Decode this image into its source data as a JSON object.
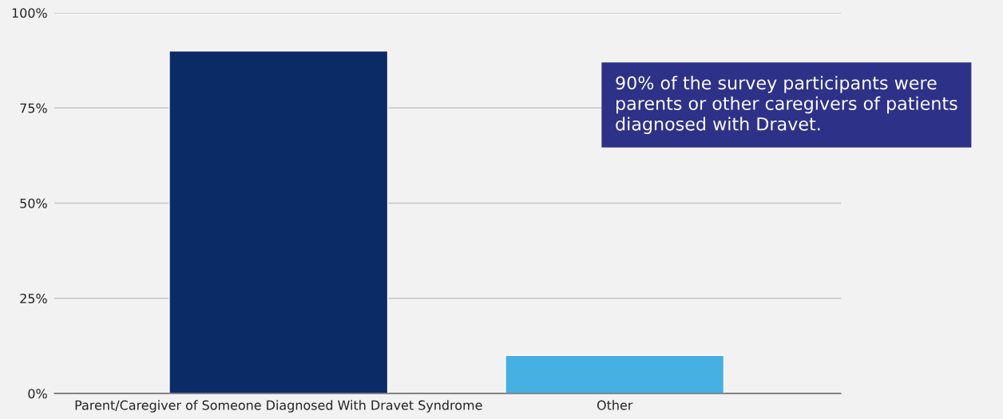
{
  "chart_data": {
    "type": "bar",
    "categories": [
      "Parent/Caregiver of Someone Diagnosed With Dravet Syndrome",
      "Other"
    ],
    "values": [
      90,
      10
    ],
    "colors": [
      "#0b2b66",
      "#47b0e2"
    ],
    "ylim": [
      0,
      100
    ],
    "yticks": [
      {
        "value": 0,
        "label": "0%"
      },
      {
        "value": 25,
        "label": "25%"
      },
      {
        "value": 50,
        "label": "50%"
      },
      {
        "value": 75,
        "label": "75%"
      },
      {
        "value": 100,
        "label": "100%"
      }
    ],
    "grid": "y",
    "legend": false,
    "annotations": [
      "90% of the survey participants were\nparents or other caregivers of patients\ndiagnosed with Dravet."
    ]
  }
}
